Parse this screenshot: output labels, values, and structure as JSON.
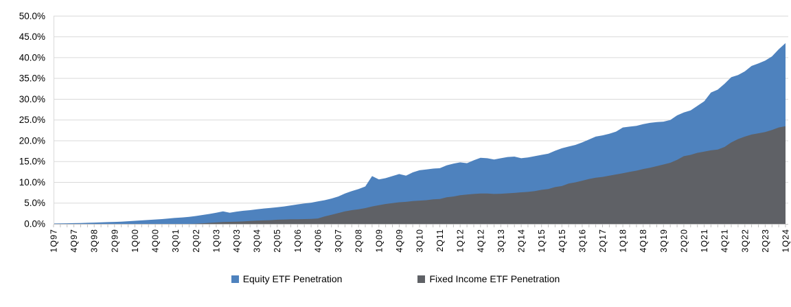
{
  "chart_data": {
    "type": "area",
    "title": "",
    "xlabel": "",
    "ylabel": "",
    "ylim": [
      0,
      50
    ],
    "y_tick_step": 5,
    "y_tick_labels": [
      "0.0%",
      "5.0%",
      "10.0%",
      "15.0%",
      "20.0%",
      "25.0%",
      "30.0%",
      "35.0%",
      "40.0%",
      "45.0%",
      "50.0%"
    ],
    "x_label_interval": 3,
    "grid": "horizontal",
    "legend_position": "bottom",
    "stacked": false,
    "colors": {
      "gridline": "#D9D9D9",
      "axis": "#BFBFBF",
      "text": "#000000"
    },
    "categories": [
      "1Q97",
      "2Q97",
      "3Q97",
      "4Q97",
      "1Q98",
      "2Q98",
      "3Q98",
      "4Q98",
      "1Q99",
      "2Q99",
      "3Q99",
      "4Q99",
      "1Q00",
      "2Q00",
      "3Q00",
      "4Q00",
      "1Q01",
      "2Q01",
      "3Q01",
      "4Q01",
      "1Q02",
      "2Q02",
      "3Q02",
      "4Q02",
      "1Q03",
      "2Q03",
      "3Q03",
      "4Q03",
      "1Q04",
      "2Q04",
      "3Q04",
      "4Q04",
      "1Q05",
      "2Q05",
      "3Q05",
      "4Q05",
      "1Q06",
      "2Q06",
      "3Q06",
      "4Q06",
      "1Q07",
      "2Q07",
      "3Q07",
      "4Q07",
      "1Q08",
      "2Q08",
      "3Q08",
      "4Q08",
      "1Q09",
      "2Q09",
      "3Q09",
      "4Q09",
      "1Q10",
      "2Q10",
      "3Q10",
      "4Q10",
      "1Q11",
      "2Q11",
      "3Q11",
      "4Q11",
      "1Q12",
      "2Q12",
      "3Q12",
      "4Q12",
      "1Q13",
      "2Q13",
      "3Q13",
      "4Q13",
      "1Q14",
      "2Q14",
      "3Q14",
      "4Q14",
      "1Q15",
      "2Q15",
      "3Q15",
      "4Q15",
      "1Q16",
      "2Q16",
      "3Q16",
      "4Q16",
      "1Q17",
      "2Q17",
      "3Q17",
      "4Q17",
      "1Q18",
      "2Q18",
      "3Q18",
      "4Q18",
      "1Q19",
      "2Q19",
      "3Q19",
      "4Q19",
      "1Q20",
      "2Q20",
      "3Q20",
      "4Q20",
      "1Q21",
      "2Q21",
      "3Q21",
      "4Q21",
      "1Q22",
      "2Q22",
      "3Q22",
      "4Q22",
      "1Q23",
      "2Q23",
      "3Q23",
      "4Q23",
      "1Q24"
    ],
    "series": [
      {
        "name": "Equity ETF Penetration",
        "color": "#4E82BE",
        "values": [
          0.1,
          0.12,
          0.15,
          0.18,
          0.22,
          0.27,
          0.32,
          0.38,
          0.43,
          0.48,
          0.55,
          0.65,
          0.75,
          0.85,
          0.95,
          1.05,
          1.15,
          1.3,
          1.45,
          1.55,
          1.7,
          1.9,
          2.15,
          2.4,
          2.7,
          3.0,
          2.7,
          2.95,
          3.15,
          3.3,
          3.5,
          3.7,
          3.85,
          4.0,
          4.2,
          4.45,
          4.7,
          4.9,
          5.1,
          5.4,
          5.7,
          6.1,
          6.6,
          7.3,
          7.9,
          8.4,
          9.0,
          11.5,
          10.7,
          11.0,
          11.5,
          12.0,
          11.6,
          12.4,
          12.9,
          13.1,
          13.3,
          13.4,
          14.1,
          14.5,
          14.8,
          14.6,
          15.3,
          15.9,
          15.8,
          15.5,
          15.8,
          16.1,
          16.2,
          15.8,
          16.0,
          16.3,
          16.6,
          16.9,
          17.6,
          18.2,
          18.6,
          19.0,
          19.6,
          20.3,
          21.0,
          21.3,
          21.7,
          22.2,
          23.2,
          23.4,
          23.6,
          24.0,
          24.3,
          24.5,
          24.6,
          25.0,
          26.1,
          26.8,
          27.3,
          28.4,
          29.5,
          31.6,
          32.3,
          33.7,
          35.3,
          35.8,
          36.7,
          38.0,
          38.6,
          39.3,
          40.3,
          42.0,
          43.5
        ]
      },
      {
        "name": "Fixed Income ETF Penetration",
        "color": "#5F6166",
        "values": [
          0,
          0,
          0,
          0,
          0,
          0,
          0,
          0,
          0,
          0,
          0,
          0,
          0,
          0,
          0,
          0,
          0,
          0,
          0,
          0,
          0.0,
          0.05,
          0.15,
          0.25,
          0.35,
          0.45,
          0.5,
          0.55,
          0.6,
          0.7,
          0.8,
          0.85,
          0.9,
          1.0,
          1.05,
          1.1,
          1.1,
          1.15,
          1.2,
          1.3,
          1.8,
          2.2,
          2.6,
          3.0,
          3.3,
          3.5,
          3.8,
          4.2,
          4.5,
          4.8,
          5.0,
          5.2,
          5.3,
          5.5,
          5.6,
          5.7,
          5.9,
          6.0,
          6.4,
          6.6,
          6.9,
          7.05,
          7.2,
          7.3,
          7.3,
          7.2,
          7.25,
          7.35,
          7.45,
          7.6,
          7.7,
          7.9,
          8.2,
          8.4,
          8.85,
          9.1,
          9.7,
          10.0,
          10.4,
          10.8,
          11.1,
          11.3,
          11.6,
          11.9,
          12.2,
          12.5,
          12.8,
          13.2,
          13.5,
          13.9,
          14.3,
          14.7,
          15.4,
          16.3,
          16.6,
          17.1,
          17.4,
          17.7,
          17.9,
          18.5,
          19.6,
          20.4,
          21.0,
          21.5,
          21.8,
          22.1,
          22.6,
          23.2,
          23.5
        ]
      }
    ]
  }
}
